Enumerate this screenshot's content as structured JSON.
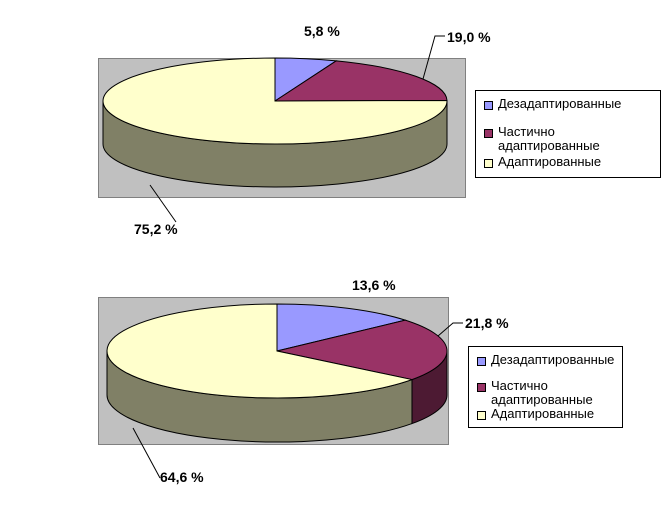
{
  "colors": {
    "Дезадаптированные": "#9999ff",
    "Частично адаптированные": "#993366",
    "Адаптированные": "#ffffcc",
    "panel": "#c0c0c0"
  },
  "chart_data": [
    {
      "type": "pie",
      "style": "3d",
      "legend_placement": "right",
      "legend": [
        "Дезадаптированные",
        "Частично адаптированные",
        "Адаптированные"
      ],
      "slices": [
        {
          "name": "Дезадаптированные",
          "value": 5.8,
          "label": "5,8 %"
        },
        {
          "name": "Частично адаптированные",
          "value": 19.0,
          "label": "19,0 %"
        },
        {
          "name": "Адаптированные",
          "value": 75.2,
          "label": "75,2 %"
        }
      ]
    },
    {
      "type": "pie",
      "style": "3d",
      "legend_placement": "right",
      "legend": [
        "Дезадаптированные",
        "Частично адаптированные",
        "Адаптированные"
      ],
      "slices": [
        {
          "name": "Дезадаптированные",
          "value": 13.6,
          "label": "13,6 %"
        },
        {
          "name": "Частично адаптированные",
          "value": 21.8,
          "label": "21,8 %"
        },
        {
          "name": "Адаптированные",
          "value": 64.6,
          "label": "64,6 %"
        }
      ]
    }
  ]
}
